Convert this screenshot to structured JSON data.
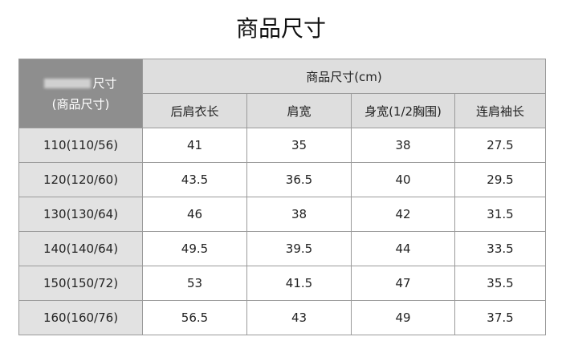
{
  "title": "商品尺寸",
  "table": {
    "corner_line1": "尺寸",
    "corner_line2": "(商品尺寸)",
    "group_header": "商品尺寸(cm)",
    "columns": [
      "后肩衣长",
      "肩宽",
      "身宽(1/2胸围)",
      "连肩袖长"
    ],
    "rows": [
      {
        "size": "110(110/56)",
        "values": [
          "41",
          "35",
          "38",
          "27.5"
        ]
      },
      {
        "size": "120(120/60)",
        "values": [
          "43.5",
          "36.5",
          "40",
          "29.5"
        ]
      },
      {
        "size": "130(130/64)",
        "values": [
          "46",
          "38",
          "42",
          "31.5"
        ]
      },
      {
        "size": "140(140/64)",
        "values": [
          "49.5",
          "39.5",
          "44",
          "33.5"
        ]
      },
      {
        "size": "150(150/72)",
        "values": [
          "53",
          "41.5",
          "47",
          "35.5"
        ]
      },
      {
        "size": "160(160/76)",
        "values": [
          "56.5",
          "43",
          "49",
          "37.5"
        ]
      }
    ]
  }
}
